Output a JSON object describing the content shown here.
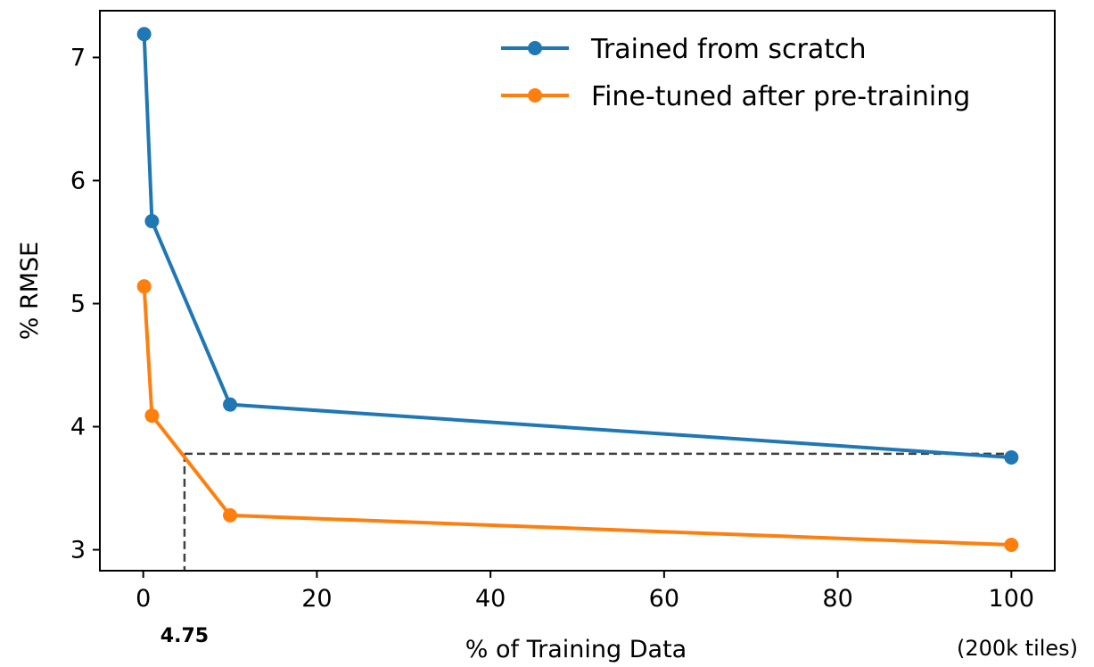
{
  "chart_data": {
    "type": "line",
    "xlabel": "% of Training Data",
    "ylabel": "% RMSE",
    "xlim": [
      -5,
      105
    ],
    "ylim": [
      2.83,
      7.38
    ],
    "xticks": [
      0,
      20,
      40,
      60,
      80,
      100
    ],
    "yticks": [
      3,
      4,
      5,
      6,
      7
    ],
    "grid": false,
    "legend_position": "top-right",
    "series": [
      {
        "name": "Trained from scratch",
        "color": "#1f77b4",
        "x": [
          0.1,
          1,
          10,
          100
        ],
        "y": [
          7.19,
          5.67,
          4.18,
          3.75
        ]
      },
      {
        "name": "Fine-tuned after pre-training",
        "color": "#ff7f0e",
        "x": [
          0.1,
          1,
          10,
          100
        ],
        "y": [
          5.14,
          4.09,
          3.28,
          3.04
        ]
      }
    ],
    "reference_lines": {
      "style": "dashed",
      "color": "#404040",
      "x": 4.75,
      "y": 3.78,
      "x_label": "4.75"
    },
    "annotations": {
      "x_max_note": "(200k tiles)"
    }
  }
}
